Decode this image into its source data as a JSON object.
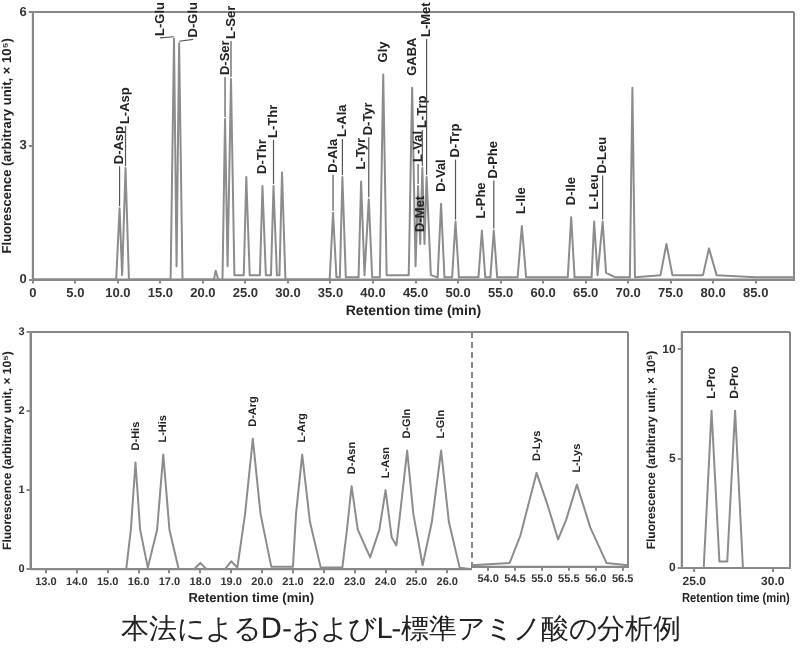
{
  "chart_data": [
    {
      "type": "line",
      "xlabel": "Retention time (min)",
      "ylabel": "Fluorescence (arbitrary unit, × 10⁵)",
      "marker": "none",
      "xlim": [
        0,
        89.5
      ],
      "ylim": [
        0,
        6
      ],
      "xticks": [
        0,
        {
          "value": 5,
          "label": "5.0"
        },
        {
          "value": 10,
          "label": "10.0"
        },
        {
          "value": 15,
          "label": "15.0"
        },
        {
          "value": 20,
          "label": "20.0"
        },
        {
          "value": 25,
          "label": "25.0"
        },
        {
          "value": 30,
          "label": "30.0"
        },
        {
          "value": 35,
          "label": "35.0"
        },
        {
          "value": 40,
          "label": "40.0"
        },
        {
          "value": 45,
          "label": "45.0"
        },
        {
          "value": 50,
          "label": "50.0"
        },
        {
          "value": 55,
          "label": "55.0"
        },
        {
          "value": 60,
          "label": "60.0"
        },
        {
          "value": 65,
          "label": "65.0"
        },
        {
          "value": 70,
          "label": "70.0"
        },
        {
          "value": 75,
          "label": "75.0"
        },
        {
          "value": 80,
          "label": "80.0"
        },
        {
          "value": 85,
          "label": "85.0"
        }
      ],
      "yticks": [
        0,
        3,
        6
      ],
      "series": [
        {
          "color": "#8c8c8c",
          "x": [
            0,
            9.8,
            10.2,
            10.5,
            10.9,
            11.3,
            16.2,
            16.6,
            16.9,
            17.2,
            17.6,
            21.3,
            21.5,
            21.8,
            22.3,
            22.6,
            22.9,
            23.3,
            23.7,
            24.8,
            25.1,
            25.5,
            26.7,
            27.0,
            27.4,
            28.0,
            28.3,
            28.7,
            29.0,
            29.3,
            29.7,
            34.9,
            35.3,
            35.7,
            36.1,
            36.4,
            36.8,
            38.3,
            38.6,
            39.0,
            39.5,
            39.9,
            40.8,
            41.2,
            41.6,
            44.2,
            44.6,
            45.0,
            45.3,
            45.55,
            45.8,
            46.05,
            46.3,
            46.8,
            47.6,
            48.0,
            48.4,
            49.3,
            49.7,
            50.1,
            52.4,
            52.8,
            53.2,
            53.8,
            54.2,
            54.6,
            57.0,
            57.5,
            58.0,
            62.9,
            63.3,
            63.7,
            65.7,
            66.0,
            66.4,
            67.0,
            67.4,
            68.5,
            70.2,
            70.5,
            70.8,
            73.8,
            74.5,
            75.2,
            78.8,
            79.5,
            80.4,
            85,
            89.5
          ],
          "values": [
            0,
            0,
            1.6,
            0.1,
            2.5,
            0,
            0,
            5.4,
            0.3,
            5.3,
            0,
            0,
            0.2,
            0,
            0,
            3.6,
            0.3,
            4.5,
            0.1,
            0.1,
            2.3,
            0.1,
            0.1,
            2.1,
            0.1,
            0.1,
            2.1,
            0.1,
            0.1,
            2.4,
            0,
            0,
            1.5,
            0.05,
            0.05,
            2.3,
            0.05,
            0.05,
            2.2,
            0.1,
            1.8,
            0.05,
            0.05,
            4.6,
            0.1,
            0.1,
            4.3,
            0.3,
            2.1,
            0.8,
            2.5,
            0.8,
            2.3,
            0.1,
            0.05,
            1.7,
            0.05,
            0.05,
            1.3,
            0.05,
            0.05,
            1.1,
            0.05,
            0.05,
            1.1,
            0.05,
            0.05,
            1.2,
            0.05,
            0.05,
            1.4,
            0.05,
            0.05,
            1.3,
            0.1,
            1.3,
            0.15,
            0.05,
            0.05,
            4.3,
            0.05,
            0.1,
            0.8,
            0.1,
            0.1,
            0.7,
            0.1,
            0.05,
            0.05
          ]
        }
      ],
      "annotations": [
        {
          "text": "D-Asp",
          "x": 10.2,
          "y": 1.6
        },
        {
          "text": "L-Asp",
          "x": 10.9,
          "y": 2.5
        },
        {
          "text": "L-Glu",
          "x": 16.6,
          "y": 5.4
        },
        {
          "text": "D-Glu",
          "x": 17.2,
          "y": 5.3
        },
        {
          "text": "D-Ser",
          "x": 22.6,
          "y": 3.6
        },
        {
          "text": "L-Ser",
          "x": 23.3,
          "y": 4.5
        },
        {
          "text": "D-Thr",
          "x": 27.0,
          "y": 2.1
        },
        {
          "text": "L-Thr",
          "x": 28.3,
          "y": 2.1
        },
        {
          "text": "D-Ala",
          "x": 35.3,
          "y": 1.5
        },
        {
          "text": "L-Ala",
          "x": 36.4,
          "y": 2.3
        },
        {
          "text": "L-Tyr",
          "x": 38.6,
          "y": 2.2
        },
        {
          "text": "D-Tyr",
          "x": 39.5,
          "y": 1.8
        },
        {
          "text": "Gly",
          "x": 41.2,
          "y": 4.6
        },
        {
          "text": "GABA",
          "x": 44.6,
          "y": 4.3
        },
        {
          "text": "L-Val",
          "x": 45.3,
          "y": 2.1
        },
        {
          "text": "D-Met",
          "x": 45.55,
          "y": 0.8
        },
        {
          "text": "L-Trp",
          "x": 45.8,
          "y": 2.5
        },
        {
          "text": "L-Met",
          "x": 46.3,
          "y": 2.3
        },
        {
          "text": "D-Val",
          "x": 48.0,
          "y": 1.7
        },
        {
          "text": "D-Trp",
          "x": 49.7,
          "y": 1.3
        },
        {
          "text": "L-Phe",
          "x": 52.8,
          "y": 1.1
        },
        {
          "text": "D-Phe",
          "x": 54.2,
          "y": 1.1
        },
        {
          "text": "L-Ile",
          "x": 57.5,
          "y": 1.2
        },
        {
          "text": "D-Ile",
          "x": 63.3,
          "y": 1.4
        },
        {
          "text": "L-Leu",
          "x": 66.0,
          "y": 1.3
        },
        {
          "text": "D-Leu",
          "x": 67.0,
          "y": 1.3
        },
        "本法によるD-およびL-標準アミノ酸の分析例"
      ]
    },
    {
      "type": "line",
      "xlabel": "Retention time (min)",
      "ylabel": "Fluorescence (arbitrary unit, × 10⁵)",
      "marker": "none",
      "xlim": [
        12.5,
        26.8
      ],
      "ylim": [
        0,
        3
      ],
      "xticks": [
        {
          "value": 13,
          "label": "13.0"
        },
        {
          "value": 14,
          "label": "14.0"
        },
        {
          "value": 15,
          "label": "15.0"
        },
        {
          "value": 16,
          "label": "16.0"
        },
        {
          "value": 17,
          "label": "17.0"
        },
        {
          "value": 18,
          "label": "18.0"
        },
        {
          "value": 19,
          "label": "19.0"
        },
        {
          "value": 20,
          "label": "20.0"
        },
        {
          "value": 21,
          "label": "21.0"
        },
        {
          "value": 22,
          "label": "22.0"
        },
        {
          "value": 23,
          "label": "23.0"
        },
        {
          "value": 24,
          "label": "24.0"
        },
        {
          "value": 25,
          "label": "25.0"
        },
        {
          "value": 26,
          "label": "26.0"
        }
      ],
      "yticks": [
        0,
        1,
        2,
        3
      ],
      "series": [
        {
          "color": "#8c8c8c",
          "x": [
            12.5,
            15.6,
            15.75,
            15.9,
            16.05,
            16.3,
            16.6,
            16.8,
            17.0,
            17.3,
            17.8,
            18.0,
            18.2,
            18.8,
            19.0,
            19.2,
            19.45,
            19.7,
            19.95,
            20.3,
            21.0,
            21.1,
            21.3,
            21.55,
            21.9,
            22.6,
            22.75,
            22.9,
            23.1,
            23.5,
            23.8,
            24.0,
            24.2,
            24.35,
            24.5,
            24.7,
            24.9,
            25.2,
            25.5,
            25.8,
            26.05,
            26.4,
            26.8
          ],
          "values": [
            0,
            0,
            0.5,
            1.35,
            0.5,
            0.02,
            0.5,
            1.45,
            0.5,
            0,
            0,
            0.08,
            0,
            0,
            0.1,
            0.02,
            0.7,
            1.65,
            0.7,
            0.03,
            0.03,
            0.7,
            1.45,
            0.6,
            0.02,
            0.02,
            0.5,
            1.05,
            0.5,
            0.15,
            0.5,
            1.0,
            0.4,
            0.3,
            0.8,
            1.5,
            0.7,
            0.05,
            0.6,
            1.5,
            0.6,
            0.02,
            0
          ]
        }
      ],
      "annotations": [
        {
          "text": "D-His",
          "x": 15.9,
          "y": 1.35
        },
        {
          "text": "L-His",
          "x": 16.8,
          "y": 1.45
        },
        {
          "text": "D-Arg",
          "x": 19.7,
          "y": 1.65
        },
        {
          "text": "L-Arg",
          "x": 21.3,
          "y": 1.45
        },
        {
          "text": "D-Asn",
          "x": 22.9,
          "y": 1.05
        },
        {
          "text": "L-Asn",
          "x": 24.0,
          "y": 1.0
        },
        {
          "text": "D-Gln",
          "x": 24.7,
          "y": 1.5
        },
        {
          "text": "L-Gln",
          "x": 25.8,
          "y": 1.5
        }
      ]
    },
    {
      "type": "line",
      "marker": "none",
      "tick_labels": "x",
      "xlim": [
        53.7,
        56.6
      ],
      "ylim": [
        0,
        3
      ],
      "xticks": [
        {
          "value": 54,
          "label": "54.0"
        },
        54.5,
        {
          "value": 55,
          "label": "55.0"
        },
        55.5,
        {
          "value": 56,
          "label": "56.0"
        },
        56.5
      ],
      "series": [
        {
          "color": "#8c8c8c",
          "x": [
            53.7,
            54.4,
            54.6,
            54.9,
            55.1,
            55.3,
            55.45,
            55.65,
            55.9,
            56.2,
            56.6
          ],
          "values": [
            0.02,
            0.05,
            0.4,
            1.2,
            0.8,
            0.35,
            0.6,
            1.05,
            0.5,
            0.05,
            0.02
          ]
        }
      ],
      "annotations": [
        {
          "text": "D-Lys",
          "x": 54.9,
          "y": 1.2
        },
        {
          "text": "L-Lys",
          "x": 55.65,
          "y": 1.05
        }
      ]
    },
    {
      "type": "line",
      "xlabel": "Retention time (min)",
      "ylabel": "Fluorescence (arbitrary unit, × 10⁵)",
      "marker": "none",
      "xlim": [
        24.2,
        31.1
      ],
      "ylim": [
        0,
        10.8
      ],
      "xticks": [
        {
          "value": 25,
          "label": "25.0"
        },
        {
          "value": 30,
          "label": "30.0"
        }
      ],
      "yticks": [
        0,
        5,
        10
      ],
      "series": [
        {
          "color": "#8c8c8c",
          "x": [
            24.2,
            25.6,
            26.1,
            26.6,
            27.1,
            27.6,
            28.1,
            31.1
          ],
          "values": [
            0,
            0,
            7.2,
            0.3,
            0.3,
            7.2,
            0,
            0
          ]
        }
      ],
      "annotations": [
        {
          "text": "L-Pro",
          "x": 26.1,
          "y": 7.2
        },
        {
          "text": "D-Pro",
          "x": 27.6,
          "y": 7.2
        }
      ]
    }
  ]
}
